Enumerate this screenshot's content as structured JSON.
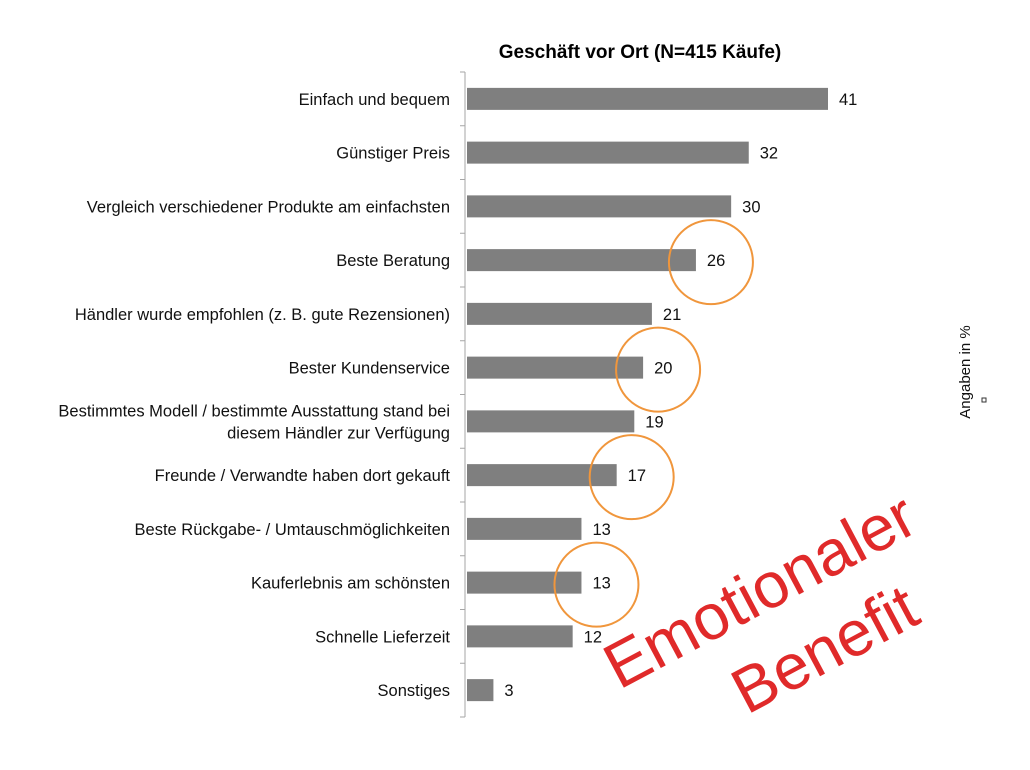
{
  "chart_data": {
    "type": "bar",
    "orientation": "horizontal",
    "title": "Geschäft vor Ort (N=415 Käufe)",
    "ylabel": "Angaben in %",
    "categories": [
      [
        "Einfach und bequem"
      ],
      [
        "Günstiger Preis"
      ],
      [
        "Vergleich verschiedener Produkte am einfachsten"
      ],
      [
        "Beste Beratung"
      ],
      [
        "Händler wurde empfohlen (z. B. gute Rezensionen)"
      ],
      [
        "Bester Kundenservice"
      ],
      [
        "Bestimmtes Modell / bestimmte Ausstattung stand bei",
        "diesem Händler zur Verfügung"
      ],
      [
        "Freunde / Verwandte haben dort gekauft"
      ],
      [
        "Beste Rückgabe- / Umtauschmöglichkeiten"
      ],
      [
        "Kauferlebnis am schönsten"
      ],
      [
        "Schnelle Lieferzeit"
      ],
      [
        "Sonstiges"
      ]
    ],
    "values": [
      41,
      32,
      30,
      26,
      21,
      20,
      19,
      17,
      13,
      13,
      12,
      3
    ],
    "highlighted": [
      3,
      5,
      7,
      9
    ],
    "xlim": [
      0,
      45
    ],
    "grid": false,
    "legend": "none",
    "bar_color": "#7f7f7f",
    "highlight_color": "#f0963c",
    "annotation": {
      "lines": [
        "Emotionaler",
        "Benefit"
      ],
      "color": "#e02a2a"
    }
  }
}
